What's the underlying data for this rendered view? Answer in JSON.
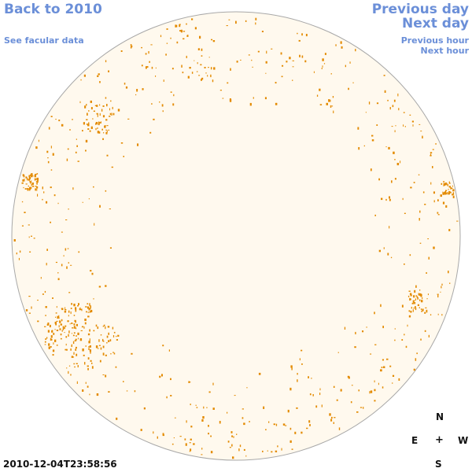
{
  "nav": {
    "back": "Back to 2010",
    "facular": "See facular data",
    "prev_day": "Previous day",
    "next_day": "Next day",
    "prev_hour": "Previous hour",
    "next_hour": "Next hour"
  },
  "compass": {
    "n": "N",
    "e": "E",
    "plus": "+",
    "w": "W",
    "s": "S"
  },
  "timestamp": "2010-12-04T23:58:56",
  "colors": {
    "link": "#6b8fd8",
    "disk": "#fff9ee",
    "limb": "#a8a8a8",
    "spots": "#e38a00"
  }
}
